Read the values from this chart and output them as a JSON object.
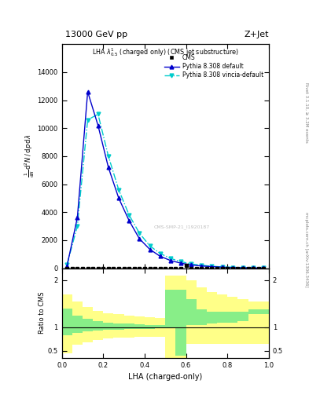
{
  "title_top": "13000 GeV pp",
  "title_right": "Z+Jet",
  "plot_title": "LHA $\\lambda^{1}_{0.5}$ (charged only) (CMS jet substructure)",
  "right_label_top": "Rivet 3.1.10, ≥ 3.2M events",
  "right_label_bottom": "mcplots.cern.ch [arXiv:1306.3436]",
  "watermark": "CMS-SMP-21_I1920187",
  "xlabel": "LHA (charged-only)",
  "xlim": [
    0,
    1
  ],
  "ylim_main": [
    0,
    16000
  ],
  "main_ytick_vals": [
    0,
    2000,
    4000,
    6000,
    8000,
    10000,
    12000,
    14000
  ],
  "main_ytick_labels": [
    "0",
    "2000",
    "4000",
    "6000",
    "8000",
    "10000",
    "12000",
    "14000"
  ],
  "cms_x": [
    0.025,
    0.05,
    0.075,
    0.1,
    0.125,
    0.15,
    0.175,
    0.2,
    0.225,
    0.25,
    0.275,
    0.3,
    0.325,
    0.35,
    0.375,
    0.4,
    0.425,
    0.45,
    0.475,
    0.5,
    0.525,
    0.55,
    0.575,
    0.6,
    0.625,
    0.65,
    0.675,
    0.7,
    0.725,
    0.75,
    0.775,
    0.8,
    0.825,
    0.85,
    0.875,
    0.9,
    0.925,
    0.95,
    0.975
  ],
  "cms_y": [
    0,
    0,
    0,
    0,
    0,
    0,
    0,
    0,
    0,
    0,
    0,
    0,
    0,
    0,
    0,
    0,
    0,
    0,
    0,
    0,
    0,
    0,
    0,
    200,
    0,
    0,
    0,
    0,
    0,
    0,
    0,
    0,
    0,
    0,
    0,
    0,
    0,
    0,
    0
  ],
  "pythia_default_x": [
    0.025,
    0.075,
    0.125,
    0.175,
    0.225,
    0.275,
    0.325,
    0.375,
    0.425,
    0.475,
    0.525,
    0.575,
    0.625,
    0.675,
    0.725,
    0.775,
    0.825,
    0.875,
    0.925,
    0.975
  ],
  "pythia_default_y": [
    150,
    3600,
    12600,
    10200,
    7200,
    5000,
    3400,
    2100,
    1350,
    850,
    550,
    360,
    230,
    160,
    110,
    70,
    45,
    28,
    18,
    8
  ],
  "pythia_vincia_x": [
    0.025,
    0.075,
    0.125,
    0.175,
    0.225,
    0.275,
    0.325,
    0.375,
    0.425,
    0.475,
    0.525,
    0.575,
    0.625,
    0.675,
    0.725,
    0.775,
    0.825,
    0.875,
    0.925,
    0.975
  ],
  "pythia_vincia_y": [
    250,
    3000,
    10600,
    11000,
    8000,
    5600,
    3800,
    2500,
    1600,
    1050,
    700,
    470,
    300,
    210,
    140,
    90,
    60,
    38,
    22,
    12
  ],
  "color_default": "#0000cc",
  "color_vincia": "#00cccc",
  "color_cms": "black",
  "legend_entries": [
    "CMS",
    "Pythia 8.308 default",
    "Pythia 8.308 vincia-default"
  ],
  "bin_edges": [
    0.0,
    0.05,
    0.1,
    0.15,
    0.2,
    0.25,
    0.3,
    0.35,
    0.4,
    0.45,
    0.5,
    0.55,
    0.6,
    0.65,
    0.7,
    0.75,
    0.8,
    0.85,
    0.9,
    0.95,
    1.0
  ],
  "yellow_lo": [
    0.45,
    0.62,
    0.68,
    0.73,
    0.76,
    0.77,
    0.78,
    0.79,
    0.79,
    0.79,
    0.35,
    0.35,
    0.65,
    0.65,
    0.65,
    0.65,
    0.65,
    0.65,
    0.65,
    0.65
  ],
  "yellow_hi": [
    1.7,
    1.55,
    1.42,
    1.35,
    1.3,
    1.28,
    1.25,
    1.23,
    1.21,
    1.2,
    2.1,
    2.1,
    2.0,
    1.85,
    1.75,
    1.7,
    1.65,
    1.6,
    1.55,
    1.55
  ],
  "green_lo": [
    0.82,
    0.88,
    0.91,
    0.93,
    0.94,
    0.95,
    0.96,
    0.96,
    0.96,
    0.97,
    0.97,
    0.4,
    1.05,
    1.05,
    1.08,
    1.1,
    1.1,
    1.12,
    1.28,
    1.28
  ],
  "green_hi": [
    1.4,
    1.25,
    1.18,
    1.13,
    1.1,
    1.08,
    1.07,
    1.06,
    1.05,
    1.05,
    1.8,
    1.8,
    1.6,
    1.38,
    1.33,
    1.32,
    1.32,
    1.32,
    1.38,
    1.38
  ]
}
